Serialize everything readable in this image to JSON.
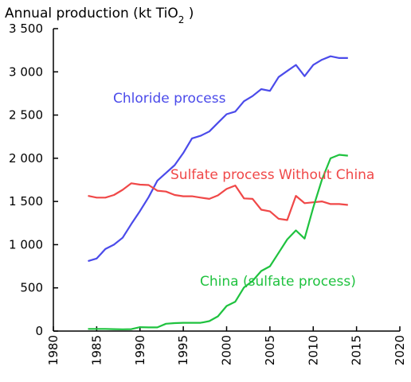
{
  "chart_data": {
    "type": "line",
    "title": "",
    "ylabel": {
      "prefix": "Annual production (kt TiO",
      "sub": "2",
      "suffix": " )"
    },
    "xlabel": "",
    "xlim": [
      1980,
      2020
    ],
    "ylim": [
      0,
      3500
    ],
    "x_ticks": [
      "1980",
      "1985",
      "1990",
      "1995",
      "2000",
      "2005",
      "2010",
      "2015",
      "2020"
    ],
    "y_ticks": [
      "0",
      "500",
      "1 000",
      "1 500",
      "2 000",
      "2 500",
      "3 000",
      "3 500"
    ],
    "grid": false,
    "legend": "inline labels",
    "series": [
      {
        "name": "Chloride process",
        "color": "#4b4bea",
        "x": [
          1984,
          1985,
          1986,
          1987,
          1988,
          1989,
          1990,
          1991,
          1992,
          1993,
          1994,
          1995,
          1996,
          1997,
          1998,
          1999,
          2000,
          2001,
          2002,
          2003,
          2004,
          2005,
          2006,
          2007,
          2008,
          2009,
          2010,
          2011,
          2012,
          2013,
          2014
        ],
        "values": [
          810,
          840,
          950,
          1000,
          1080,
          1240,
          1390,
          1550,
          1740,
          1830,
          1920,
          2060,
          2230,
          2260,
          2310,
          2410,
          2510,
          2540,
          2660,
          2720,
          2800,
          2780,
          2940,
          3010,
          3080,
          2950,
          3080,
          3140,
          3180,
          3160,
          3160
        ]
      },
      {
        "name": "Sulfate process Without China",
        "color": "#f04848",
        "x": [
          1984,
          1985,
          1986,
          1987,
          1988,
          1989,
          1990,
          1991,
          1992,
          1993,
          1994,
          1995,
          1996,
          1997,
          1998,
          1999,
          2000,
          2001,
          2002,
          2003,
          2004,
          2005,
          2006,
          2007,
          2008,
          2009,
          2010,
          2011,
          2012,
          2013,
          2014
        ],
        "values": [
          1565,
          1545,
          1545,
          1575,
          1635,
          1710,
          1695,
          1690,
          1625,
          1615,
          1575,
          1560,
          1560,
          1545,
          1530,
          1570,
          1645,
          1685,
          1535,
          1530,
          1405,
          1385,
          1300,
          1285,
          1565,
          1480,
          1490,
          1500,
          1470,
          1470,
          1460
        ]
      },
      {
        "name": "China (sulfate process)",
        "color": "#1fc23f",
        "x": [
          1984,
          1985,
          1986,
          1987,
          1988,
          1989,
          1990,
          1991,
          1992,
          1993,
          1994,
          1995,
          1996,
          1997,
          1998,
          1999,
          2000,
          2001,
          2002,
          2003,
          2004,
          2005,
          2006,
          2007,
          2008,
          2009,
          2010,
          2011,
          2012,
          2013,
          2014
        ],
        "values": [
          25,
          25,
          25,
          22,
          20,
          22,
          45,
          42,
          42,
          85,
          92,
          96,
          96,
          96,
          115,
          170,
          290,
          340,
          505,
          580,
          695,
          750,
          905,
          1060,
          1165,
          1070,
          1430,
          1750,
          2000,
          2040,
          2030
        ]
      }
    ]
  }
}
